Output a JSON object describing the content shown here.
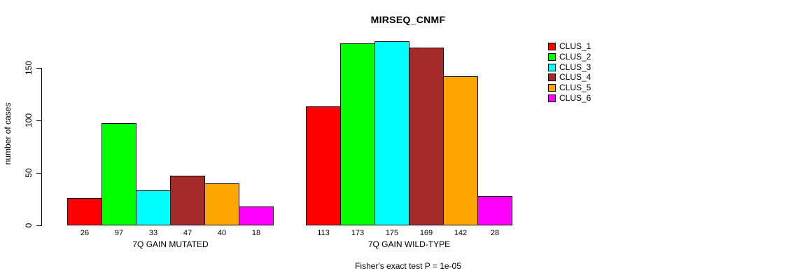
{
  "title": "MIRSEQ_CNMF",
  "chart_data": {
    "type": "bar",
    "title": "MIRSEQ_CNMF",
    "ylabel": "number of cases",
    "xlabel": "",
    "yticks": [
      0,
      50,
      100,
      150
    ],
    "ylim": [
      0,
      175
    ],
    "grid": false,
    "legend_position": "right",
    "series": [
      {
        "name": "CLUS_1",
        "color": "#FF0000"
      },
      {
        "name": "CLUS_2",
        "color": "#00FF00"
      },
      {
        "name": "CLUS_3",
        "color": "#00FFFF"
      },
      {
        "name": "CLUS_4",
        "color": "#A52A2A"
      },
      {
        "name": "CLUS_5",
        "color": "#FFA500"
      },
      {
        "name": "CLUS_6",
        "color": "#FF00FF"
      }
    ],
    "groups": [
      {
        "label": "7Q GAIN MUTATED",
        "values": [
          26,
          97,
          33,
          47,
          40,
          18
        ]
      },
      {
        "label": "7Q GAIN WILD-TYPE",
        "values": [
          113,
          173,
          175,
          169,
          142,
          28
        ]
      }
    ],
    "footer": "Fisher's exact test P = 1e-05"
  }
}
